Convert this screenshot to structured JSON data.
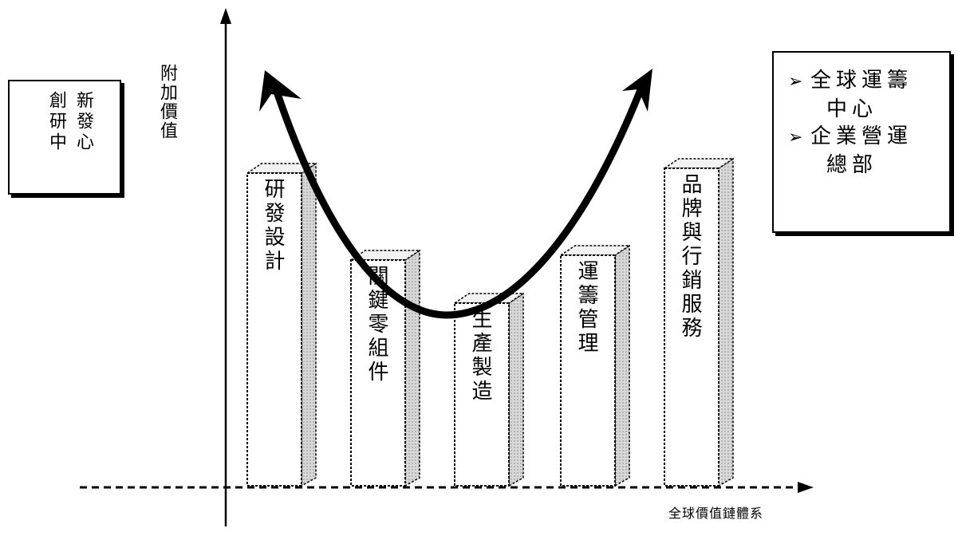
{
  "left_box": {
    "columns": [
      "新發心",
      "創研中"
    ]
  },
  "y_axis_label": "附加價值",
  "x_axis_label": "全球價值鏈體系",
  "bars": [
    {
      "label": "研發設計",
      "level": 0.72
    },
    {
      "label": "關鍵零組件",
      "level": 0.52
    },
    {
      "label": "生產製造",
      "level": 0.42
    },
    {
      "label": "運籌管理",
      "level": 0.53
    },
    {
      "label": "品牌與行銷服務",
      "level": 0.73
    }
  ],
  "right_box": {
    "items": [
      {
        "bullet": "➢",
        "line1": "全球運籌",
        "line2": "中心"
      },
      {
        "bullet": "➢",
        "line1": "企業營運",
        "line2": "總部"
      }
    ]
  }
}
